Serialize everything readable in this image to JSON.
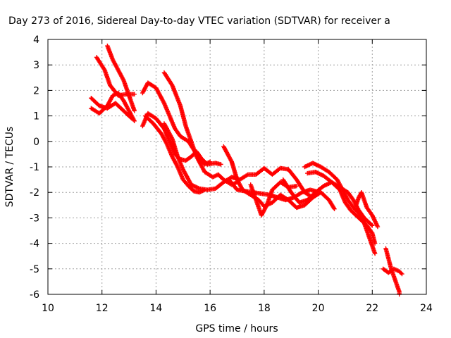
{
  "chart_data": {
    "type": "scatter",
    "title": "Day 273 of 2016, Sidereal Day-to-day VTEC variation (SDTVAR) for receiver a",
    "xlabel": "GPS time / hours",
    "ylabel": "SDTVAR / TECUs",
    "xlim": [
      10,
      24
    ],
    "ylim": [
      -6,
      4
    ],
    "xticks": [
      "10",
      "12",
      "14",
      "16",
      "18",
      "20",
      "22",
      "24"
    ],
    "yticks": [
      "4",
      "3",
      "2",
      "1",
      "0",
      "-1",
      "-2",
      "-3",
      "-4",
      "-5",
      "-6"
    ],
    "grid": true,
    "marker": "+",
    "color": "#ff0000",
    "series": [
      {
        "name": "trace-a",
        "points": [
          [
            11.6,
            1.7
          ],
          [
            11.9,
            1.4
          ],
          [
            12.2,
            1.3
          ],
          [
            12.5,
            1.5
          ],
          [
            12.8,
            1.2
          ],
          [
            13.1,
            0.9
          ]
        ]
      },
      {
        "name": "trace-b",
        "points": [
          [
            11.6,
            1.3
          ],
          [
            11.9,
            1.1
          ],
          [
            12.2,
            1.4
          ],
          [
            12.4,
            1.8
          ],
          [
            12.6,
            1.9
          ],
          [
            12.8,
            1.6
          ],
          [
            13.0,
            1.2
          ],
          [
            13.2,
            0.8
          ]
        ]
      },
      {
        "name": "trace-c",
        "points": [
          [
            11.8,
            3.3
          ],
          [
            12.1,
            2.8
          ],
          [
            12.3,
            2.2
          ],
          [
            12.6,
            1.8
          ],
          [
            12.9,
            1.85
          ],
          [
            13.2,
            1.85
          ]
        ]
      },
      {
        "name": "trace-d",
        "points": [
          [
            12.2,
            3.75
          ],
          [
            12.4,
            3.2
          ],
          [
            12.6,
            2.8
          ],
          [
            12.8,
            2.4
          ],
          [
            13.0,
            1.8
          ],
          [
            13.2,
            1.2
          ]
        ]
      },
      {
        "name": "trace-e",
        "points": [
          [
            13.5,
            0.6
          ],
          [
            13.7,
            1.1
          ],
          [
            14.0,
            0.9
          ],
          [
            14.3,
            0.5
          ],
          [
            14.5,
            0.0
          ],
          [
            14.7,
            -0.5
          ],
          [
            14.9,
            -0.7
          ],
          [
            15.1,
            -0.75
          ],
          [
            15.3,
            -0.6
          ],
          [
            15.5,
            -0.4
          ],
          [
            15.7,
            -0.7
          ],
          [
            15.9,
            -0.9
          ],
          [
            16.2,
            -0.85
          ],
          [
            16.4,
            -0.9
          ]
        ]
      },
      {
        "name": "trace-f",
        "points": [
          [
            13.5,
            1.9
          ],
          [
            13.7,
            2.3
          ],
          [
            14.0,
            2.1
          ],
          [
            14.3,
            1.5
          ],
          [
            14.5,
            1.0
          ],
          [
            14.7,
            0.5
          ],
          [
            14.9,
            0.2
          ],
          [
            15.2,
            0.0
          ],
          [
            15.5,
            -0.5
          ],
          [
            15.8,
            -0.9
          ],
          [
            16.0,
            -0.8
          ]
        ]
      },
      {
        "name": "trace-g",
        "points": [
          [
            13.6,
            1.0
          ],
          [
            13.9,
            0.7
          ],
          [
            14.2,
            0.3
          ],
          [
            14.4,
            -0.1
          ],
          [
            14.6,
            -0.6
          ],
          [
            14.8,
            -1.0
          ],
          [
            15.0,
            -1.5
          ],
          [
            15.2,
            -1.75
          ],
          [
            15.4,
            -1.95
          ],
          [
            15.6,
            -2.0
          ],
          [
            15.8,
            -1.9
          ]
        ]
      },
      {
        "name": "trace-h",
        "points": [
          [
            14.3,
            2.7
          ],
          [
            14.6,
            2.2
          ],
          [
            14.9,
            1.4
          ],
          [
            15.1,
            0.6
          ],
          [
            15.3,
            0.0
          ],
          [
            15.5,
            -0.6
          ],
          [
            15.8,
            -1.2
          ],
          [
            16.1,
            -1.4
          ],
          [
            16.3,
            -1.3
          ],
          [
            16.5,
            -1.5
          ],
          [
            16.8,
            -1.7
          ],
          [
            17.0,
            -1.6
          ]
        ]
      },
      {
        "name": "trace-i",
        "points": [
          [
            14.3,
            0.7
          ],
          [
            14.6,
            0.1
          ],
          [
            14.8,
            -0.6
          ],
          [
            15.0,
            -1.1
          ],
          [
            15.3,
            -1.7
          ],
          [
            15.6,
            -1.85
          ],
          [
            15.9,
            -1.9
          ],
          [
            16.2,
            -1.85
          ],
          [
            16.5,
            -1.6
          ],
          [
            16.8,
            -1.4
          ],
          [
            17.1,
            -1.5
          ],
          [
            17.4,
            -1.3
          ],
          [
            17.7,
            -1.3
          ],
          [
            18.0,
            -1.05
          ],
          [
            18.3,
            -1.3
          ],
          [
            18.6,
            -1.05
          ],
          [
            18.9,
            -1.1
          ],
          [
            19.2,
            -1.5
          ],
          [
            19.5,
            -2.0
          ],
          [
            19.8,
            -2.2
          ]
        ]
      },
      {
        "name": "trace-j",
        "points": [
          [
            16.5,
            -0.2
          ],
          [
            16.8,
            -0.8
          ],
          [
            17.0,
            -1.5
          ],
          [
            17.2,
            -1.9
          ],
          [
            17.5,
            -2.1
          ],
          [
            17.8,
            -2.3
          ],
          [
            18.0,
            -2.55
          ],
          [
            18.3,
            -2.4
          ],
          [
            18.6,
            -2.1
          ],
          [
            18.9,
            -2.3
          ],
          [
            19.2,
            -2.6
          ],
          [
            19.5,
            -2.5
          ],
          [
            19.8,
            -2.2
          ],
          [
            20.1,
            -2.0
          ],
          [
            20.4,
            -2.3
          ],
          [
            20.6,
            -2.65
          ]
        ]
      },
      {
        "name": "trace-k",
        "points": [
          [
            16.7,
            -1.5
          ],
          [
            17.0,
            -1.9
          ],
          [
            17.3,
            -1.95
          ],
          [
            17.6,
            -2.0
          ],
          [
            17.9,
            -2.05
          ],
          [
            18.2,
            -2.1
          ],
          [
            18.5,
            -2.2
          ],
          [
            18.8,
            -2.3
          ],
          [
            19.1,
            -2.2
          ],
          [
            19.4,
            -2.0
          ],
          [
            19.7,
            -1.9
          ],
          [
            19.9,
            -1.95
          ]
        ]
      },
      {
        "name": "trace-l",
        "points": [
          [
            17.5,
            -1.7
          ],
          [
            17.7,
            -2.3
          ],
          [
            17.9,
            -2.9
          ],
          [
            18.1,
            -2.5
          ],
          [
            18.3,
            -1.9
          ],
          [
            18.6,
            -1.6
          ],
          [
            18.9,
            -1.8
          ],
          [
            19.2,
            -1.75
          ]
        ]
      },
      {
        "name": "trace-m",
        "points": [
          [
            18.7,
            -1.5
          ],
          [
            19.0,
            -2.0
          ],
          [
            19.3,
            -2.4
          ],
          [
            19.6,
            -2.3
          ],
          [
            19.9,
            -2.0
          ],
          [
            20.2,
            -1.75
          ],
          [
            20.5,
            -1.6
          ],
          [
            20.8,
            -1.8
          ],
          [
            21.1,
            -2.0
          ],
          [
            21.3,
            -2.3
          ],
          [
            21.5,
            -2.7
          ],
          [
            21.7,
            -3.0
          ],
          [
            22.0,
            -3.3
          ]
        ]
      },
      {
        "name": "trace-n",
        "points": [
          [
            19.5,
            -1.0
          ],
          [
            19.8,
            -0.85
          ],
          [
            20.1,
            -1.0
          ],
          [
            20.4,
            -1.2
          ],
          [
            20.7,
            -1.5
          ],
          [
            20.9,
            -1.9
          ],
          [
            21.1,
            -2.3
          ],
          [
            21.3,
            -2.6
          ],
          [
            21.5,
            -2.8
          ],
          [
            21.7,
            -3.2
          ],
          [
            21.8,
            -3.5
          ],
          [
            21.9,
            -3.8
          ],
          [
            22.0,
            -4.1
          ],
          [
            22.1,
            -4.4
          ]
        ]
      },
      {
        "name": "trace-o",
        "points": [
          [
            19.6,
            -1.25
          ],
          [
            19.9,
            -1.2
          ],
          [
            20.2,
            -1.35
          ],
          [
            20.5,
            -1.6
          ],
          [
            20.8,
            -1.9
          ],
          [
            21.0,
            -2.4
          ],
          [
            21.2,
            -2.7
          ],
          [
            21.4,
            -2.9
          ],
          [
            21.6,
            -3.1
          ],
          [
            21.8,
            -3.3
          ],
          [
            22.0,
            -3.6
          ],
          [
            22.1,
            -4.0
          ]
        ]
      },
      {
        "name": "trace-p",
        "points": [
          [
            21.4,
            -2.5
          ],
          [
            21.5,
            -2.2
          ],
          [
            21.6,
            -2.0
          ],
          [
            21.7,
            -2.3
          ],
          [
            21.8,
            -2.6
          ],
          [
            22.0,
            -2.9
          ],
          [
            22.2,
            -3.35
          ]
        ]
      },
      {
        "name": "trace-q",
        "points": [
          [
            22.5,
            -4.2
          ],
          [
            22.6,
            -4.6
          ],
          [
            22.7,
            -5.0
          ],
          [
            22.8,
            -5.3
          ],
          [
            22.9,
            -5.6
          ],
          [
            23.0,
            -5.9
          ],
          [
            23.0,
            -6.0
          ]
        ]
      },
      {
        "name": "trace-r",
        "points": [
          [
            22.4,
            -5.0
          ],
          [
            22.6,
            -5.15
          ],
          [
            22.8,
            -5.0
          ],
          [
            23.0,
            -5.1
          ],
          [
            23.1,
            -5.2
          ]
        ]
      }
    ]
  }
}
